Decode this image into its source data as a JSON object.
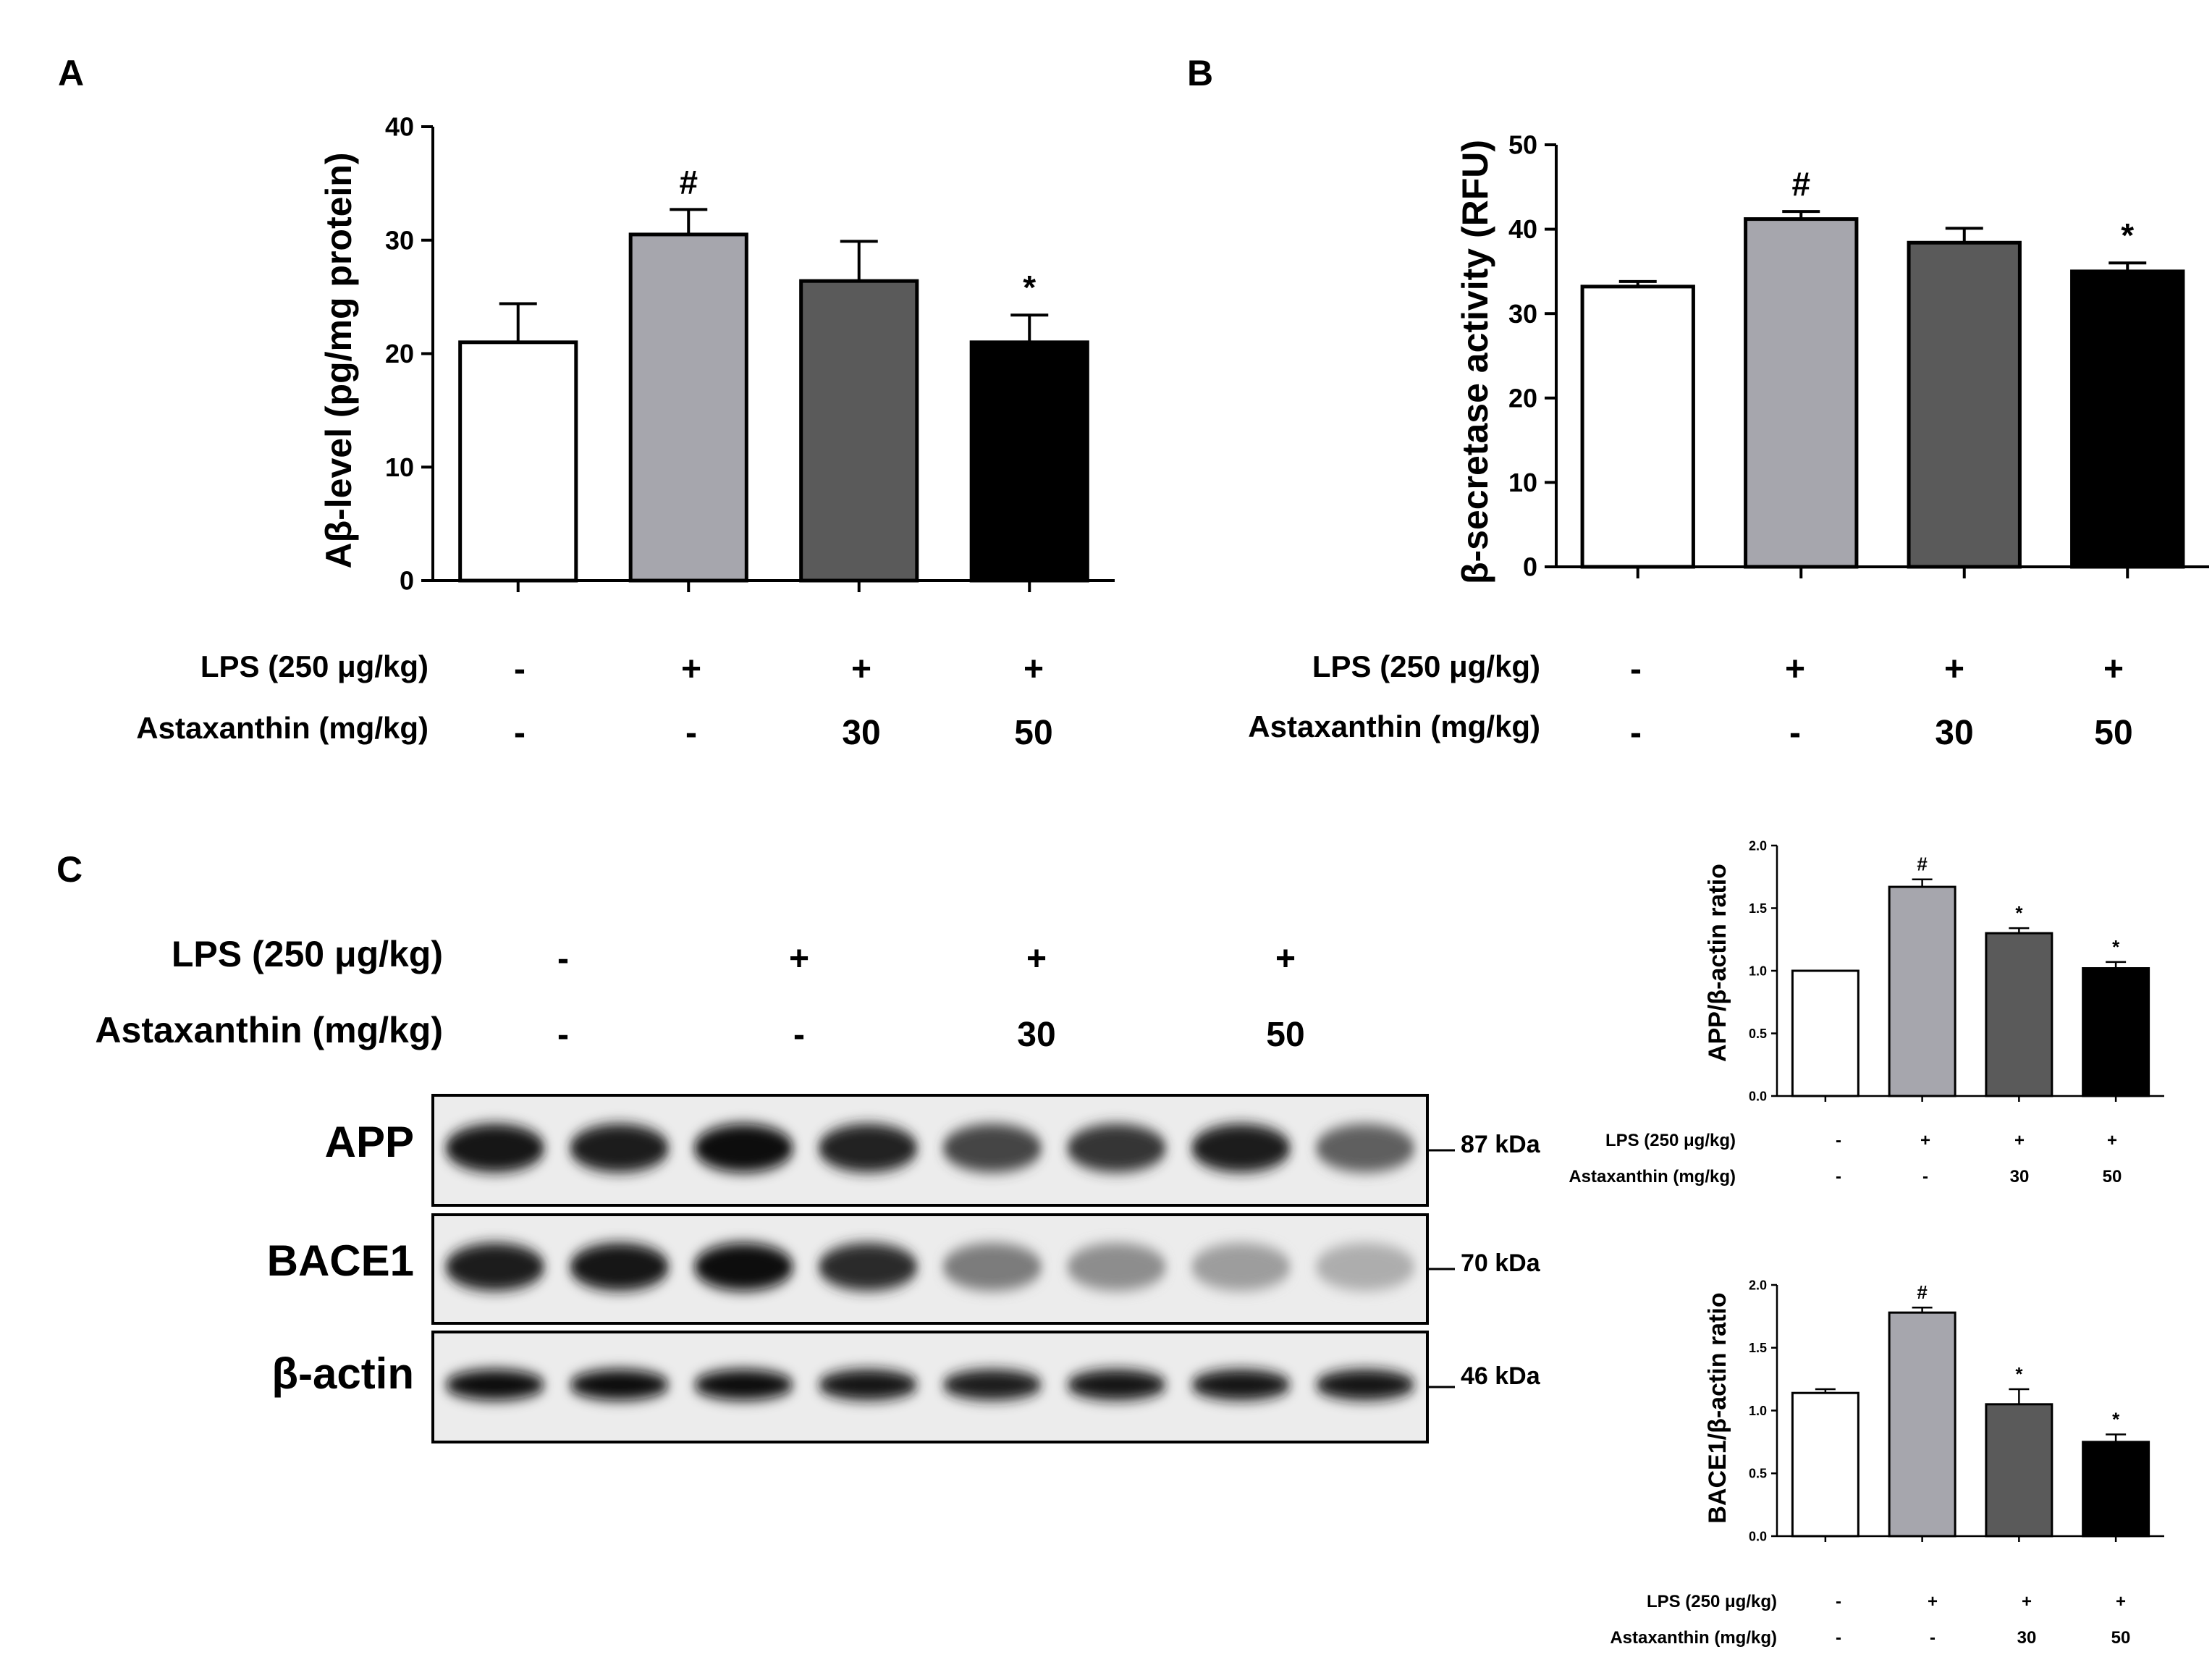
{
  "panels": {
    "A": {
      "letter": "A",
      "chart_data": {
        "type": "bar",
        "categories": [
          "1",
          "2",
          "3",
          "4"
        ],
        "values": [
          21.0,
          30.5,
          26.4,
          21.0
        ],
        "errors": [
          3.4,
          2.2,
          3.5,
          2.4
        ],
        "annotations": [
          "",
          "#",
          "",
          "*"
        ],
        "ylabel": "Aβ-level (pg/mg protein)",
        "ylim": [
          0,
          40
        ],
        "yticks": [
          0,
          10,
          20,
          30,
          40
        ],
        "bar_colors": [
          "#ffffff",
          "#a6a6ad",
          "#5a5a5a",
          "#000000"
        ],
        "grid": false
      },
      "conditions": [
        {
          "label": "LPS (250 μg/kg)",
          "values": [
            "-",
            "+",
            "+",
            "+"
          ]
        },
        {
          "label": "Astaxanthin (mg/kg)",
          "values": [
            "-",
            "-",
            "30",
            "50"
          ]
        }
      ]
    },
    "B": {
      "letter": "B",
      "chart_data": {
        "type": "bar",
        "categories": [
          "1",
          "2",
          "3",
          "4"
        ],
        "values": [
          33.2,
          41.2,
          38.4,
          35.0
        ],
        "errors": [
          0.6,
          0.9,
          1.7,
          1.0
        ],
        "annotations": [
          "",
          "#",
          "",
          "*"
        ],
        "ylabel": "β-secretase activity (RFU)",
        "ylim": [
          0,
          50
        ],
        "yticks": [
          0,
          10,
          20,
          30,
          40,
          50
        ],
        "bar_colors": [
          "#ffffff",
          "#a6a6ad",
          "#5a5a5a",
          "#000000"
        ],
        "grid": false
      },
      "conditions": [
        {
          "label": "LPS (250 μg/kg)",
          "values": [
            "-",
            "+",
            "+",
            "+"
          ]
        },
        {
          "label": "Astaxanthin (mg/kg)",
          "values": [
            "-",
            "-",
            "30",
            "50"
          ]
        }
      ]
    },
    "C": {
      "letter": "C",
      "conditions": [
        {
          "label": "LPS (250 μg/kg)",
          "values": [
            "-",
            "+",
            "+",
            "+"
          ]
        },
        {
          "label": "Astaxanthin (mg/kg)",
          "values": [
            "-",
            "-",
            "30",
            "50"
          ]
        }
      ],
      "blots": [
        {
          "label": "APP",
          "kda": "87 kDa",
          "intensities": [
            0.95,
            0.92,
            0.97,
            0.88,
            0.74,
            0.8,
            0.9,
            0.62
          ]
        },
        {
          "label": "BACE1",
          "kda": "70 kDa",
          "intensities": [
            0.9,
            0.93,
            0.97,
            0.85,
            0.5,
            0.42,
            0.35,
            0.28
          ]
        },
        {
          "label": "β-actin",
          "kda": "46 kDa",
          "intensities": [
            0.98,
            0.97,
            0.96,
            0.95,
            0.92,
            0.93,
            0.95,
            0.93
          ]
        }
      ]
    },
    "C_APP": {
      "chart_data": {
        "type": "bar",
        "categories": [
          "1",
          "2",
          "3",
          "4"
        ],
        "values": [
          1.0,
          1.67,
          1.3,
          1.02
        ],
        "errors": [
          0.0,
          0.06,
          0.04,
          0.05
        ],
        "annotations": [
          "",
          "#",
          "*",
          "*"
        ],
        "ylabel": "APP/β-actin ratio",
        "ylim": [
          0,
          2.0
        ],
        "yticks": [
          "0.0",
          "0.5",
          "1.0",
          "1.5",
          "2.0"
        ],
        "bar_colors": [
          "#ffffff",
          "#a6a6ad",
          "#5a5a5a",
          "#000000"
        ],
        "grid": false
      },
      "conditions": [
        {
          "label": "LPS (250 μg/kg)",
          "values": [
            "-",
            "+",
            "+",
            "+"
          ]
        },
        {
          "label": "Astaxanthin (mg/kg)",
          "values": [
            "-",
            "-",
            "30",
            "50"
          ]
        }
      ]
    },
    "C_BACE1": {
      "chart_data": {
        "type": "bar",
        "categories": [
          "1",
          "2",
          "3",
          "4"
        ],
        "values": [
          1.14,
          1.78,
          1.05,
          0.75
        ],
        "errors": [
          0.03,
          0.04,
          0.12,
          0.06
        ],
        "annotations": [
          "",
          "#",
          "*",
          "*"
        ],
        "ylabel": "BACE1/β-actin ratio",
        "ylim": [
          0,
          2.0
        ],
        "yticks": [
          "0.0",
          "0.5",
          "1.0",
          "1.5",
          "2.0"
        ],
        "bar_colors": [
          "#ffffff",
          "#a6a6ad",
          "#5a5a5a",
          "#000000"
        ],
        "grid": false
      },
      "conditions": [
        {
          "label": "LPS (250 μg/kg)",
          "values": [
            "-",
            "+",
            "+",
            "+"
          ]
        },
        {
          "label": "Astaxanthin (mg/kg)",
          "values": [
            "-",
            "-",
            "30",
            "50"
          ]
        }
      ]
    }
  }
}
